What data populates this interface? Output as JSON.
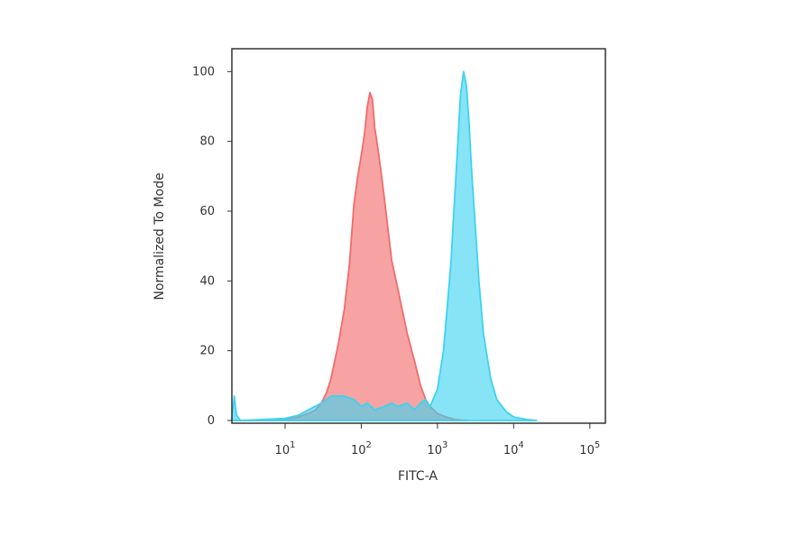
{
  "chart_data": {
    "type": "area",
    "xlabel": "FITC-A",
    "ylabel": "Normalized To Mode",
    "x_scale": "log",
    "xlim": [
      2,
      160000
    ],
    "ylim": [
      0,
      105
    ],
    "grid": false,
    "legend": "none",
    "y_ticks": [
      {
        "value": 0,
        "label": "0"
      },
      {
        "value": 20,
        "label": "20"
      },
      {
        "value": 40,
        "label": "40"
      },
      {
        "value": 60,
        "label": "60"
      },
      {
        "value": 80,
        "label": "80"
      },
      {
        "value": 100,
        "label": "100"
      }
    ],
    "x_ticks": [
      {
        "value": 10,
        "base": "10",
        "exp": "1"
      },
      {
        "value": 100,
        "base": "10",
        "exp": "2"
      },
      {
        "value": 1000,
        "base": "10",
        "exp": "3"
      },
      {
        "value": 10000,
        "base": "10",
        "exp": "4"
      },
      {
        "value": 100000,
        "base": "10",
        "exp": "5"
      }
    ],
    "series": [
      {
        "color": "#f26b6b",
        "x": [
          2,
          5,
          10,
          15,
          20,
          25,
          30,
          35,
          40,
          50,
          60,
          70,
          80,
          90,
          100,
          110,
          120,
          130,
          140,
          150,
          160,
          180,
          200,
          250,
          300,
          400,
          500,
          600,
          700,
          800,
          1000,
          1300,
          1700,
          2500
        ],
        "y": [
          0,
          0,
          0.3,
          1,
          2,
          3,
          5,
          8,
          12,
          22,
          32,
          45,
          62,
          70,
          76,
          82,
          90,
          94,
          92,
          84,
          80,
          72,
          64,
          46,
          38,
          25,
          17,
          10,
          6,
          4,
          2,
          1,
          0.3,
          0
        ]
      },
      {
        "color": "#3dd3f0",
        "x": [
          2,
          2.15,
          2.3,
          2.6,
          5,
          10,
          15,
          20,
          30,
          40,
          60,
          80,
          100,
          120,
          150,
          200,
          250,
          300,
          400,
          500,
          600,
          700,
          800,
          1000,
          1200,
          1500,
          1800,
          2000,
          2200,
          2400,
          2600,
          2800,
          3000,
          3500,
          4000,
          5000,
          6000,
          8000,
          10000,
          15000,
          20000
        ],
        "y": [
          0.5,
          7,
          1.5,
          0,
          0.3,
          0.6,
          1.5,
          3,
          5,
          7,
          7,
          6,
          4,
          5,
          3,
          4,
          5,
          4,
          5,
          3,
          5,
          6,
          4,
          9,
          20,
          45,
          75,
          93,
          100,
          96,
          85,
          72,
          62,
          40,
          25,
          12,
          6,
          2.5,
          1,
          0.3,
          0
        ]
      }
    ]
  }
}
